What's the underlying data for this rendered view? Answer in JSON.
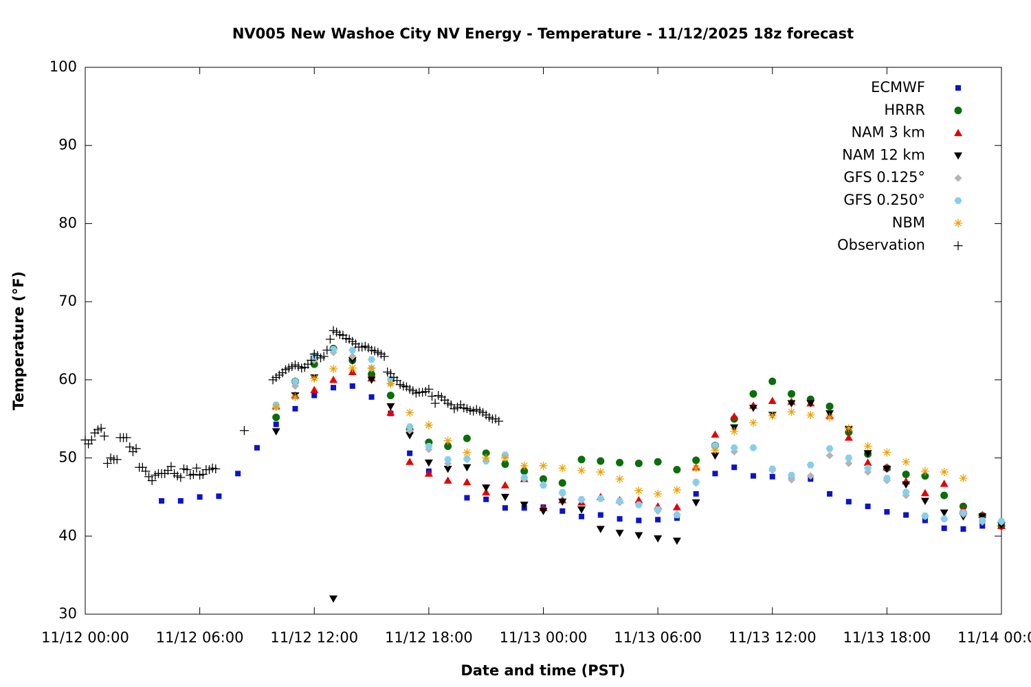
{
  "chart_data": {
    "type": "scatter",
    "title": "NV005 New Washoe City NV Energy - Temperature - 11/12/2025 18z forecast",
    "xlabel": "Date and time (PST)",
    "ylabel": "Temperature (°F)",
    "xlim": [
      0,
      2880
    ],
    "xticks": [
      {
        "value": 0,
        "label": "11/12 00:00"
      },
      {
        "value": 360,
        "label": "11/12 06:00"
      },
      {
        "value": 720,
        "label": "11/12 12:00"
      },
      {
        "value": 1080,
        "label": "11/12 18:00"
      },
      {
        "value": 1440,
        "label": "11/13 00:00"
      },
      {
        "value": 1800,
        "label": "11/13 06:00"
      },
      {
        "value": 2160,
        "label": "11/13 12:00"
      },
      {
        "value": 2520,
        "label": "11/13 18:00"
      },
      {
        "value": 2880,
        "label": "11/14 00:00"
      }
    ],
    "ylim": [
      30,
      100
    ],
    "yticks": [
      30,
      40,
      50,
      60,
      70,
      80,
      90,
      100
    ],
    "grid": false,
    "legend": "top-right",
    "series": [
      {
        "name": "ECMWF",
        "color": "#0a14c8",
        "marker": "square",
        "x": [
          240,
          300,
          360,
          420,
          480,
          540,
          600,
          660,
          720,
          780,
          840,
          900,
          960,
          1020,
          1080,
          1200,
          1260,
          1320,
          1380,
          1440,
          1500,
          1560,
          1620,
          1680,
          1740,
          1800,
          1860,
          1920,
          1980,
          2040,
          2100,
          2160,
          2220,
          2280,
          2340,
          2400,
          2460,
          2520,
          2580,
          2640,
          2700,
          2760,
          2820,
          2880
        ],
        "values": [
          44.5,
          44.5,
          45.0,
          45.1,
          48.0,
          51.3,
          54.3,
          56.3,
          58.0,
          59.0,
          59.2,
          57.8,
          55.7,
          50.6,
          48.3,
          44.9,
          44.7,
          43.6,
          43.6,
          43.7,
          43.2,
          42.5,
          42.7,
          42.2,
          42.0,
          42.1,
          42.3,
          45.4,
          48.0,
          48.8,
          47.7,
          47.6,
          47.6,
          47.3,
          45.4,
          44.4,
          43.8,
          43.1,
          42.7,
          42.0,
          41.0,
          40.9,
          41.3,
          41.3
        ]
      },
      {
        "name": "HRRR",
        "color": "#0a6e0a",
        "marker": "circle",
        "x": [
          600,
          660,
          720,
          780,
          840,
          900,
          960,
          1020,
          1080,
          1140,
          1200,
          1260,
          1320,
          1380,
          1440,
          1500,
          1560,
          1620,
          1680,
          1740,
          1800,
          1860,
          1920,
          1980,
          2040,
          2100,
          2160,
          2220,
          2280,
          2340,
          2400,
          2460,
          2520,
          2580,
          2640,
          2700,
          2760,
          2820,
          2880
        ],
        "values": [
          55.2,
          59.8,
          62.0,
          64.0,
          62.5,
          60.7,
          58.0,
          53.6,
          52.0,
          51.5,
          52.5,
          50.6,
          49.2,
          48.3,
          47.3,
          46.8,
          49.8,
          49.6,
          49.4,
          49.3,
          49.5,
          48.5,
          49.7,
          51.6,
          55.0,
          58.2,
          59.8,
          58.2,
          57.5,
          56.6,
          53.3,
          50.5,
          48.7,
          47.9,
          47.7,
          45.2,
          43.8,
          42.6,
          41.3
        ]
      },
      {
        "name": "NAM 3 km",
        "color": "#e80000",
        "marker": "triangle",
        "x": [
          600,
          660,
          720,
          780,
          840,
          900,
          960,
          1020,
          1080,
          1140,
          1200,
          1260,
          1320,
          1380,
          1440,
          1500,
          1560,
          1620,
          1680,
          1740,
          1800,
          1860,
          1920,
          1980,
          2040,
          2100,
          2160,
          2220,
          2280,
          2340,
          2400,
          2460,
          2520,
          2580,
          2640,
          2700,
          2760,
          2820,
          2880
        ],
        "values": [
          56.6,
          58.0,
          58.7,
          60.0,
          61.0,
          60.2,
          55.8,
          49.5,
          48.0,
          47.1,
          46.9,
          45.6,
          46.5,
          47.3,
          43.6,
          44.6,
          44.3,
          45.0,
          44.6,
          44.6,
          43.8,
          43.7,
          48.8,
          53.0,
          55.3,
          56.7,
          57.3,
          57.2,
          57.0,
          55.4,
          52.6,
          49.4,
          48.8,
          47.0,
          45.5,
          46.7,
          43.4,
          42.7,
          41.3
        ]
      },
      {
        "name": "NAM 12 km",
        "color": "#000000",
        "marker": "triangle-down",
        "x": [
          600,
          660,
          720,
          780,
          840,
          900,
          960,
          1020,
          1080,
          1140,
          1200,
          1260,
          1320,
          1380,
          1440,
          1500,
          1560,
          1620,
          1680,
          1740,
          1800,
          1860,
          1920,
          1980,
          2040,
          2100,
          2160,
          2220,
          2280,
          2340,
          2400,
          2460,
          2520,
          2580,
          2640,
          2700,
          2760,
          2820,
          2880
        ],
        "values": [
          53.4,
          58.0,
          60.3,
          32.0,
          62.5,
          60.0,
          56.6,
          52.9,
          49.4,
          48.6,
          48.8,
          46.2,
          45.0,
          44.0,
          43.2,
          44.4,
          43.4,
          40.9,
          40.4,
          40.1,
          39.7,
          39.4,
          44.3,
          50.3,
          53.9,
          56.4,
          55.5,
          57.0,
          57.0,
          55.7,
          53.7,
          50.6,
          48.6,
          46.6,
          44.5,
          43.0,
          42.5,
          42.5,
          41.4
        ]
      },
      {
        "name": "GFS 0.125°",
        "color": "#b4b4b4",
        "marker": "diamond",
        "x": [
          600,
          660,
          720,
          780,
          840,
          900,
          960,
          1020,
          1080,
          1140,
          1200,
          1260,
          1320,
          1380,
          1440,
          1500,
          1560,
          1620,
          1680,
          1740,
          1800,
          1860,
          1920,
          1980,
          2040,
          2100,
          2160,
          2220,
          2280,
          2340,
          2400,
          2460,
          2520,
          2580,
          2640,
          2700,
          2760,
          2820,
          2880
        ],
        "values": [
          56.5,
          59.2,
          62.5,
          63.5,
          63.0,
          61.5,
          59.5,
          53.5,
          51.1,
          49.3,
          49.8,
          49.6,
          50.2,
          47.3,
          46.6,
          45.4,
          44.6,
          44.8,
          44.3,
          44.0,
          43.2,
          42.8,
          46.8,
          51.3,
          50.8,
          51.3,
          48.4,
          47.2,
          47.7,
          50.3,
          49.3,
          48.2,
          47.1,
          45.2,
          42.5,
          42.2,
          42.8,
          41.8,
          41.8
        ]
      },
      {
        "name": "GFS 0.250°",
        "color": "#87ceeb",
        "marker": "hexagon",
        "x": [
          600,
          660,
          720,
          780,
          840,
          900,
          960,
          1020,
          1080,
          1140,
          1200,
          1260,
          1320,
          1380,
          1440,
          1500,
          1560,
          1620,
          1680,
          1740,
          1800,
          1860,
          1920,
          1980,
          2040,
          2100,
          2160,
          2220,
          2280,
          2340,
          2400,
          2460,
          2520,
          2580,
          2640,
          2700,
          2760,
          2820,
          2880
        ],
        "values": [
          56.8,
          59.8,
          63.1,
          63.9,
          63.8,
          62.6,
          60.1,
          54.0,
          51.5,
          49.8,
          49.9,
          49.6,
          50.4,
          47.5,
          46.5,
          45.6,
          44.7,
          44.8,
          44.5,
          44.0,
          43.4,
          42.7,
          46.9,
          51.6,
          51.3,
          51.3,
          48.6,
          47.8,
          49.1,
          51.2,
          50.0,
          48.7,
          47.4,
          45.6,
          42.6,
          42.2,
          43.0,
          42.0,
          41.9
        ]
      },
      {
        "name": "NBM",
        "color": "#f0a000",
        "marker": "star",
        "x": [
          600,
          660,
          720,
          780,
          840,
          900,
          960,
          1020,
          1080,
          1140,
          1200,
          1260,
          1320,
          1380,
          1440,
          1500,
          1560,
          1620,
          1680,
          1740,
          1800,
          1860,
          1920,
          1980,
          2040,
          2100,
          2160,
          2220,
          2280,
          2340,
          2400,
          2460,
          2520,
          2580,
          2640,
          2700,
          2760
        ],
        "values": [
          56.5,
          57.8,
          60.2,
          61.4,
          61.5,
          61.5,
          59.5,
          55.8,
          54.2,
          52.2,
          50.7,
          50.0,
          50.0,
          49.0,
          49.0,
          48.7,
          48.4,
          48.2,
          47.3,
          45.8,
          45.4,
          45.9,
          48.7,
          51.0,
          53.4,
          54.5,
          55.4,
          55.9,
          55.5,
          55.2,
          53.8,
          51.5,
          50.7,
          49.5,
          48.3,
          48.2,
          47.4
        ]
      },
      {
        "name": "Observation",
        "color": "#000000",
        "marker": "plus",
        "x": [
          0,
          10,
          20,
          30,
          40,
          50,
          60,
          70,
          80,
          90,
          100,
          110,
          120,
          130,
          140,
          150,
          160,
          170,
          180,
          190,
          200,
          210,
          220,
          230,
          240,
          250,
          260,
          270,
          280,
          290,
          300,
          310,
          320,
          330,
          340,
          350,
          360,
          370,
          380,
          390,
          400,
          410,
          500,
          590,
          600,
          610,
          620,
          630,
          640,
          650,
          660,
          670,
          680,
          690,
          700,
          710,
          720,
          730,
          740,
          750,
          760,
          770,
          780,
          790,
          800,
          810,
          820,
          830,
          840,
          850,
          860,
          870,
          880,
          890,
          900,
          910,
          920,
          930,
          940,
          950,
          960,
          970,
          980,
          990,
          1000,
          1010,
          1020,
          1030,
          1040,
          1050,
          1060,
          1070,
          1080,
          1090,
          1100,
          1110,
          1120,
          1130,
          1140,
          1150,
          1160,
          1170,
          1180,
          1190,
          1200,
          1210,
          1220,
          1230,
          1240,
          1250,
          1260,
          1270,
          1280,
          1290,
          1300
        ],
        "values": [
          52.3,
          51.8,
          52.3,
          53.2,
          53.6,
          53.8,
          52.8,
          49.3,
          50.0,
          49.8,
          49.8,
          52.6,
          52.6,
          52.6,
          51.4,
          50.8,
          51.2,
          48.8,
          48.8,
          48.3,
          47.6,
          47.1,
          47.8,
          48.0,
          48.0,
          48.0,
          48.4,
          48.9,
          48.0,
          47.7,
          47.5,
          48.6,
          48.5,
          47.8,
          47.9,
          48.7,
          47.8,
          47.9,
          48.5,
          48.5,
          48.7,
          48.6,
          53.5,
          60.0,
          60.3,
          60.6,
          60.9,
          61.3,
          61.5,
          61.7,
          61.9,
          61.7,
          61.5,
          61.6,
          62.0,
          62.5,
          63.3,
          63.1,
          62.8,
          63.0,
          63.8,
          65.2,
          66.3,
          66.1,
          65.8,
          65.7,
          65.3,
          65.2,
          64.9,
          64.6,
          64.2,
          64.2,
          64.3,
          64.1,
          63.8,
          63.7,
          63.5,
          63.3,
          63.0,
          61.0,
          60.8,
          60.3,
          59.9,
          59.4,
          59.2,
          59.1,
          58.8,
          58.6,
          58.3,
          58.4,
          58.4,
          58.5,
          58.8,
          57.9,
          57.0,
          58.0,
          57.8,
          57.4,
          57.0,
          56.8,
          56.3,
          56.5,
          56.8,
          56.4,
          56.3,
          56.1,
          56.0,
          56.2,
          56.0,
          55.8,
          55.5,
          55.2,
          55.0,
          55.0,
          54.7
        ]
      }
    ]
  }
}
